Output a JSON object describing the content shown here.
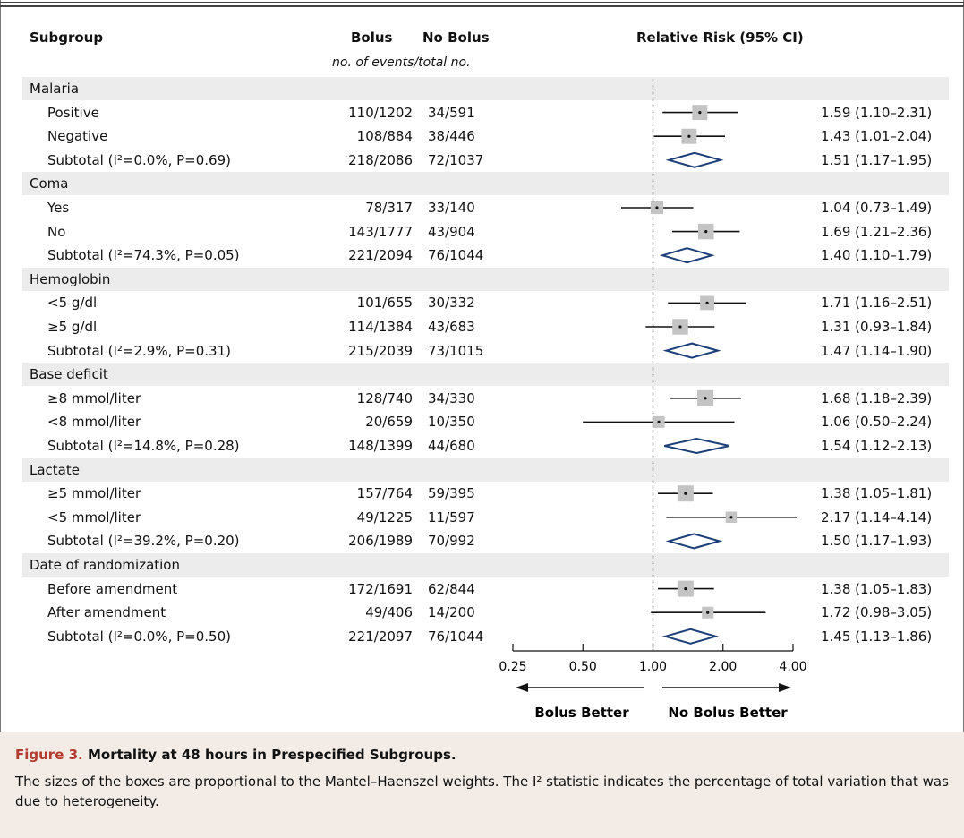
{
  "headers": {
    "subgroup": "Subgroup",
    "bolus": "Bolus",
    "no_bolus": "No Bolus",
    "subheader": "no. of events/total no.",
    "rr": "Relative Risk (95% CI)"
  },
  "rows": [
    {
      "label": "Malaria",
      "type": "group",
      "shaded": true
    },
    {
      "label": "Positive",
      "type": "item",
      "bolus": "110/1202",
      "nobolus": "34/591",
      "rr_text": "1.59 (1.10–2.31)",
      "est": 1.59,
      "lo": 1.1,
      "hi": 2.31,
      "weight": 0.9,
      "shaded": false
    },
    {
      "label": "Negative",
      "type": "item",
      "bolus": "108/884",
      "nobolus": "38/446",
      "rr_text": "1.43 (1.01–2.04)",
      "est": 1.43,
      "lo": 1.01,
      "hi": 2.04,
      "weight": 0.9,
      "shaded": false
    },
    {
      "label": "Subtotal (I²=0.0%, P=0.69)",
      "type": "subtotal",
      "bolus": "218/2086",
      "nobolus": "72/1037",
      "rr_text": "1.51 (1.17–1.95)",
      "est": 1.51,
      "lo": 1.17,
      "hi": 1.95,
      "shaded": false
    },
    {
      "label": "Coma",
      "type": "group",
      "shaded": true
    },
    {
      "label": "Yes",
      "type": "item",
      "bolus": "78/317",
      "nobolus": "33/140",
      "rr_text": "1.04 (0.73–1.49)",
      "est": 1.04,
      "lo": 0.73,
      "hi": 1.49,
      "weight": 0.65,
      "shaded": false
    },
    {
      "label": "No",
      "type": "item",
      "bolus": "143/1777",
      "nobolus": "43/904",
      "rr_text": "1.69 (1.21–2.36)",
      "est": 1.69,
      "lo": 1.21,
      "hi": 2.36,
      "weight": 0.95,
      "shaded": false
    },
    {
      "label": "Subtotal (I²=74.3%, P=0.05)",
      "type": "subtotal",
      "bolus": "221/2094",
      "nobolus": "76/1044",
      "rr_text": "1.40 (1.10–1.79)",
      "est": 1.4,
      "lo": 1.1,
      "hi": 1.79,
      "shaded": false
    },
    {
      "label": "Hemoglobin",
      "type": "group",
      "shaded": true
    },
    {
      "label": "<5 g/dl",
      "type": "item",
      "bolus": "101/655",
      "nobolus": "30/332",
      "rr_text": "1.71 (1.16–2.51)",
      "est": 1.71,
      "lo": 1.16,
      "hi": 2.51,
      "weight": 0.8,
      "shaded": false
    },
    {
      "label": "≥5 g/dl",
      "type": "item",
      "bolus": "114/1384",
      "nobolus": "43/683",
      "rr_text": "1.31 (0.93–1.84)",
      "est": 1.31,
      "lo": 0.93,
      "hi": 1.84,
      "weight": 0.95,
      "shaded": false
    },
    {
      "label": "Subtotal (I²=2.9%, P=0.31)",
      "type": "subtotal",
      "bolus": "215/2039",
      "nobolus": "73/1015",
      "rr_text": "1.47 (1.14–1.90)",
      "est": 1.47,
      "lo": 1.14,
      "hi": 1.9,
      "shaded": false
    },
    {
      "label": "Base deficit",
      "type": "group",
      "shaded": true
    },
    {
      "label": "≥8 mmol/liter",
      "type": "item",
      "bolus": "128/740",
      "nobolus": "34/330",
      "rr_text": "1.68 (1.18–2.39)",
      "est": 1.68,
      "lo": 1.18,
      "hi": 2.39,
      "weight": 1.0,
      "shaded": false
    },
    {
      "label": "<8 mmol/liter",
      "type": "item",
      "bolus": "20/659",
      "nobolus": "10/350",
      "rr_text": "1.06 (0.50–2.24)",
      "est": 1.06,
      "lo": 0.5,
      "hi": 2.24,
      "weight": 0.55,
      "shaded": false
    },
    {
      "label": "Subtotal (I²=14.8%, P=0.28)",
      "type": "subtotal",
      "bolus": "148/1399",
      "nobolus": "44/680",
      "rr_text": "1.54 (1.12–2.13)",
      "est": 1.54,
      "lo": 1.12,
      "hi": 2.13,
      "shaded": false
    },
    {
      "label": "Lactate",
      "type": "group",
      "shaded": true
    },
    {
      "label": "≥5 mmol/liter",
      "type": "item",
      "bolus": "157/764",
      "nobolus": "59/395",
      "rr_text": "1.38 (1.05–1.81)",
      "est": 1.38,
      "lo": 1.05,
      "hi": 1.81,
      "weight": 1.0,
      "shaded": false
    },
    {
      "label": "<5 mmol/liter",
      "type": "item",
      "bolus": "49/1225",
      "nobolus": "11/597",
      "rr_text": "2.17 (1.14–4.14)",
      "est": 2.17,
      "lo": 1.14,
      "hi": 4.14,
      "weight": 0.5,
      "shaded": false
    },
    {
      "label": "Subtotal (I²=39.2%, P=0.20)",
      "type": "subtotal",
      "bolus": "206/1989",
      "nobolus": "70/992",
      "rr_text": "1.50 (1.17–1.93)",
      "est": 1.5,
      "lo": 1.17,
      "hi": 1.93,
      "shaded": false
    },
    {
      "label": "Date of randomization",
      "type": "group",
      "shaded": true
    },
    {
      "label": "Before amendment",
      "type": "item",
      "bolus": "172/1691",
      "nobolus": "62/844",
      "rr_text": "1.38 (1.05–1.83)",
      "est": 1.38,
      "lo": 1.05,
      "hi": 1.83,
      "weight": 1.0,
      "shaded": false
    },
    {
      "label": "After amendment",
      "type": "item",
      "bolus": "49/406",
      "nobolus": "14/200",
      "rr_text": "1.72 (0.98–3.05)",
      "est": 1.72,
      "lo": 0.98,
      "hi": 3.05,
      "weight": 0.55,
      "shaded": false
    },
    {
      "label": "Subtotal (I²=0.0%, P=0.50)",
      "type": "subtotal",
      "bolus": "221/2097",
      "nobolus": "76/1044",
      "rr_text": "1.45 (1.13–1.86)",
      "est": 1.45,
      "lo": 1.13,
      "hi": 1.86,
      "shaded": false
    }
  ],
  "chart_data": {
    "type": "forest",
    "xscale": "log",
    "xlim": [
      0.25,
      4.0
    ],
    "ticks": [
      0.25,
      0.5,
      1.0,
      2.0,
      4.0
    ],
    "tick_labels": [
      "0.25",
      "0.50",
      "1.00",
      "2.00",
      "4.00"
    ],
    "reference_line": 1.0,
    "left_label": "Bolus Better",
    "right_label": "No Bolus Better",
    "colors": {
      "box": "#c4c4c4",
      "diamond": "#1c3f7a",
      "line": "#111111"
    }
  },
  "caption": {
    "label": "Figure 3.",
    "title": "Mortality at 48 hours in Prespecified Subgroups.",
    "text": "The sizes of the boxes are proportional to the Mantel–Haenszel weights. The I² statistic indicates the percentage of total variation that was due to heterogeneity."
  }
}
